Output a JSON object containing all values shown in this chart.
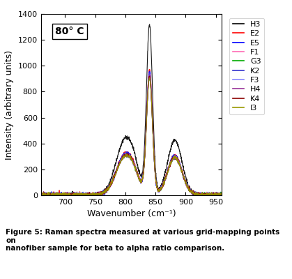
{
  "xlim": [
    660,
    960
  ],
  "ylim": [
    0,
    1400
  ],
  "xlabel": "Wavenumber (cm⁻¹)",
  "ylabel": "Intensity (arbitrary units)",
  "annotation": "80° C",
  "caption": "Figure 5: Raman spectra measured at various grid-mapping points on\nnanofiber sample for beta to alpha ratio comparison.",
  "series": [
    {
      "label": "H3",
      "color": "#000000",
      "peak1": 1300,
      "peak2_ratio": 1.03
    },
    {
      "label": "E2",
      "color": "#ff0000",
      "peak1": 950,
      "peak2_ratio": 0.98
    },
    {
      "label": "E5",
      "color": "#0000ff",
      "peak1": 940,
      "peak2_ratio": 0.96
    },
    {
      "label": "F1",
      "color": "#ff69b4",
      "peak1": 920,
      "peak2_ratio": 0.95
    },
    {
      "label": "G3",
      "color": "#00aa00",
      "peak1": 900,
      "peak2_ratio": 0.94
    },
    {
      "label": "K2",
      "color": "#3333cc",
      "peak1": 910,
      "peak2_ratio": 0.95
    },
    {
      "label": "F3",
      "color": "#8888ff",
      "peak1": 905,
      "peak2_ratio": 0.93
    },
    {
      "label": "H4",
      "color": "#993399",
      "peak1": 895,
      "peak2_ratio": 0.92
    },
    {
      "label": "K4",
      "color": "#8b0000",
      "peak1": 900,
      "peak2_ratio": 0.94
    },
    {
      "label": "I3",
      "color": "#999900",
      "peak1": 890,
      "peak2_ratio": 0.91
    }
  ],
  "xticks": [
    700,
    750,
    800,
    850,
    900,
    950
  ],
  "yticks": [
    0,
    200,
    400,
    600,
    800,
    1000,
    1200,
    1400
  ]
}
